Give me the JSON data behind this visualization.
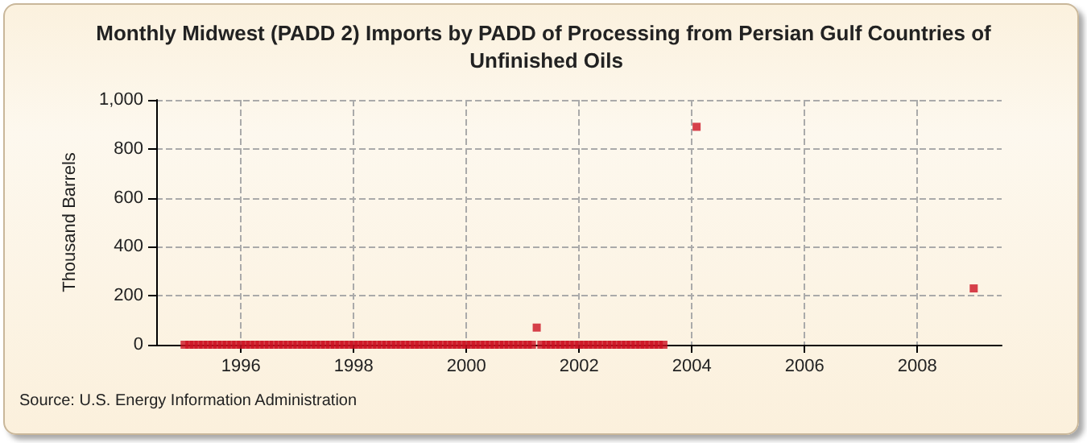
{
  "chart_data": {
    "type": "scatter",
    "title": "Monthly Midwest (PADD 2) Imports by PADD of Processing from Persian Gulf Countries of Unfinished Oils",
    "ylabel": "Thousand Barrels",
    "annotations": [
      "Source: U.S. Energy Information Administration"
    ],
    "x": [
      "1995-01",
      "1995-02",
      "1995-03",
      "1995-04",
      "1995-05",
      "1995-06",
      "1995-07",
      "1995-08",
      "1995-09",
      "1995-10",
      "1995-11",
      "1995-12",
      "1996-01",
      "1996-02",
      "1996-03",
      "1996-04",
      "1996-05",
      "1996-06",
      "1996-07",
      "1996-08",
      "1996-09",
      "1996-10",
      "1996-11",
      "1996-12",
      "1997-01",
      "1997-02",
      "1997-03",
      "1997-04",
      "1997-05",
      "1997-06",
      "1997-07",
      "1997-08",
      "1997-09",
      "1997-10",
      "1997-11",
      "1997-12",
      "1998-01",
      "1998-02",
      "1998-03",
      "1998-04",
      "1998-05",
      "1998-06",
      "1998-07",
      "1998-08",
      "1998-09",
      "1998-10",
      "1998-11",
      "1998-12",
      "1999-01",
      "1999-02",
      "1999-03",
      "1999-04",
      "1999-05",
      "1999-06",
      "1999-07",
      "1999-08",
      "1999-09",
      "1999-10",
      "1999-11",
      "1999-12",
      "2000-01",
      "2000-02",
      "2000-03",
      "2000-04",
      "2000-05",
      "2000-06",
      "2000-07",
      "2000-08",
      "2000-09",
      "2000-10",
      "2000-11",
      "2000-12",
      "2001-01",
      "2001-02",
      "2001-03",
      "2001-04",
      "2001-05",
      "2001-06",
      "2001-07",
      "2001-08",
      "2001-09",
      "2001-10",
      "2001-11",
      "2001-12",
      "2002-01",
      "2002-02",
      "2002-03",
      "2002-04",
      "2002-05",
      "2002-06",
      "2002-07",
      "2002-08",
      "2002-09",
      "2002-10",
      "2002-11",
      "2002-12",
      "2003-01",
      "2003-02",
      "2003-03",
      "2003-04",
      "2003-05",
      "2003-06",
      "2003-07",
      "2004-02",
      "2009-01"
    ],
    "values": [
      0,
      0,
      0,
      0,
      0,
      0,
      0,
      0,
      0,
      0,
      0,
      0,
      0,
      0,
      0,
      0,
      0,
      0,
      0,
      0,
      0,
      0,
      0,
      0,
      0,
      0,
      0,
      0,
      0,
      0,
      0,
      0,
      0,
      0,
      0,
      0,
      0,
      0,
      0,
      0,
      0,
      0,
      0,
      0,
      0,
      0,
      0,
      0,
      0,
      0,
      0,
      0,
      0,
      0,
      0,
      0,
      0,
      0,
      0,
      0,
      0,
      0,
      0,
      0,
      0,
      0,
      0,
      0,
      0,
      0,
      0,
      0,
      0,
      0,
      0,
      70,
      0,
      0,
      0,
      0,
      0,
      0,
      0,
      0,
      0,
      0,
      0,
      0,
      0,
      0,
      0,
      0,
      0,
      0,
      0,
      0,
      0,
      0,
      0,
      0,
      0,
      0,
      0,
      890,
      230
    ],
    "color": "#cc1122",
    "marker": "square",
    "grid": true,
    "xlim": [
      "1994-07",
      "2009-07"
    ],
    "xticks": [
      "1996",
      "1998",
      "2000",
      "2002",
      "2004",
      "2006",
      "2008"
    ],
    "ylim": [
      0,
      1000
    ],
    "yticks": [
      0,
      200,
      400,
      600,
      800,
      {
        "value": 1000,
        "label": "1,000"
      }
    ]
  }
}
